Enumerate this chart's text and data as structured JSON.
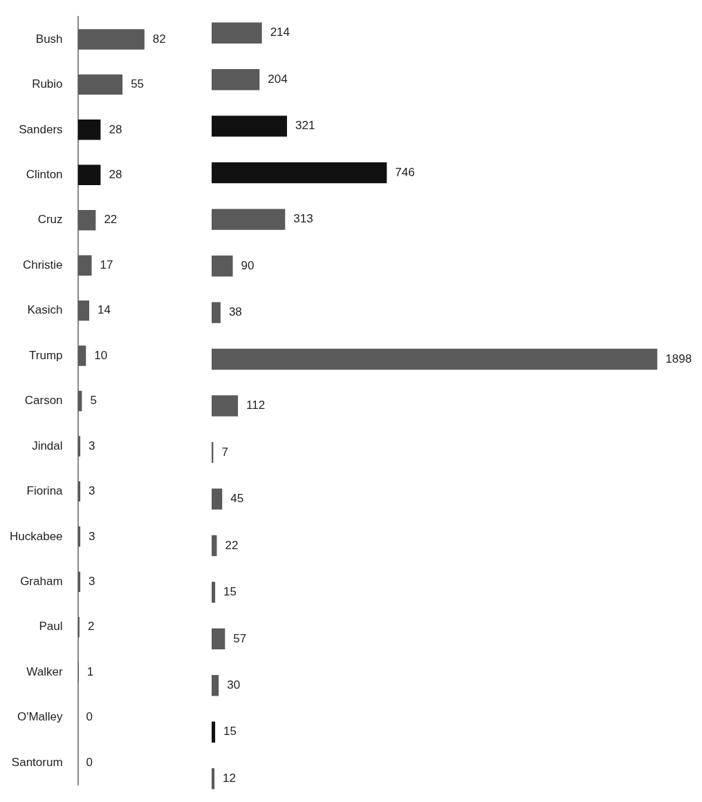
{
  "chart_data": [
    {
      "type": "bar",
      "orientation": "horizontal",
      "categories": [
        "Bush",
        "Rubio",
        "Sanders",
        "Clinton",
        "Cruz",
        "Christie",
        "Kasich",
        "Trump",
        "Carson",
        "Jindal",
        "Fiorina",
        "Huckabee",
        "Graham",
        "Paul",
        "Walker",
        "O'Malley",
        "Santorum"
      ],
      "values": [
        82,
        55,
        28,
        28,
        22,
        17,
        14,
        10,
        5,
        3,
        3,
        3,
        3,
        2,
        1,
        0,
        0
      ],
      "colors": [
        "#5a5a5a",
        "#5a5a5a",
        "#111111",
        "#111111",
        "#5a5a5a",
        "#5a5a5a",
        "#5a5a5a",
        "#5a5a5a",
        "#5a5a5a",
        "#5a5a5a",
        "#5a5a5a",
        "#5a5a5a",
        "#5a5a5a",
        "#5a5a5a",
        "#5a5a5a",
        "#111111",
        "#5a5a5a"
      ],
      "data_labels": true,
      "grid": false,
      "legend": false,
      "tick_labels": "y"
    },
    {
      "type": "bar",
      "orientation": "horizontal",
      "categories": [
        null,
        null,
        null,
        null,
        null,
        null,
        null,
        null,
        null,
        null,
        null,
        null,
        null,
        null,
        null,
        null,
        null
      ],
      "values": [
        214,
        204,
        321,
        746,
        313,
        90,
        38,
        1898,
        112,
        7,
        45,
        22,
        15,
        57,
        30,
        15,
        12
      ],
      "colors": [
        "#5a5a5a",
        "#5a5a5a",
        "#111111",
        "#111111",
        "#5a5a5a",
        "#5a5a5a",
        "#5a5a5a",
        "#5a5a5a",
        "#5a5a5a",
        "#5a5a5a",
        "#5a5a5a",
        "#5a5a5a",
        "#5a5a5a",
        "#5a5a5a",
        "#5a5a5a",
        "#111111",
        "#5a5a5a"
      ],
      "data_labels": true,
      "grid": false,
      "legend": false,
      "tick_labels": false
    }
  ]
}
